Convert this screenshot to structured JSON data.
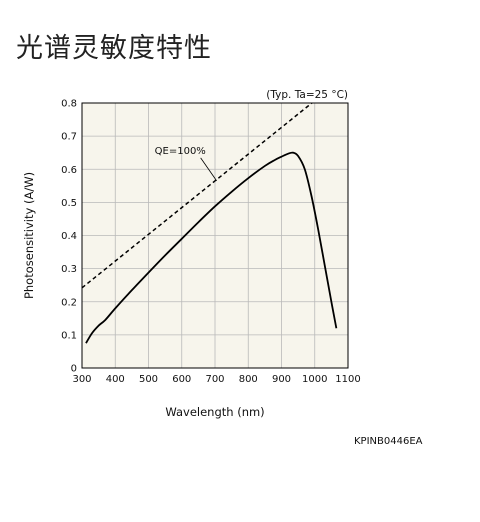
{
  "page": {
    "title": "光谱灵敏度特性",
    "figure_code": "KPINB0446EA"
  },
  "chart_data": {
    "type": "line",
    "title": "",
    "xlabel": "Wavelength (nm)",
    "ylabel": "Photosensitivity (A/W)",
    "condition": "(Typ. Ta=25 °C)",
    "xlim": [
      300,
      1100
    ],
    "ylim": [
      0,
      0.8
    ],
    "x_ticks": [
      300,
      400,
      500,
      600,
      700,
      800,
      900,
      1000,
      1100
    ],
    "y_ticks": [
      0,
      0.1,
      0.2,
      0.3,
      0.4,
      0.5,
      0.6,
      0.7,
      0.8
    ],
    "x_tick_labels": [
      "300",
      "400",
      "500",
      "600",
      "700",
      "800",
      "900",
      "1000",
      "1100"
    ],
    "y_tick_labels": [
      "0",
      "0.1",
      "0.2",
      "0.3",
      "0.4",
      "0.5",
      "0.6",
      "0.7",
      "0.8"
    ],
    "grid": true,
    "background": "#f7f5ec",
    "series": [
      {
        "style": "solid",
        "color": "#000000",
        "x": [
          312,
          330,
          350,
          370,
          400,
          450,
          500,
          550,
          600,
          650,
          700,
          750,
          800,
          850,
          880,
          900,
          920,
          935,
          950,
          970,
          990,
          1010,
          1030,
          1050,
          1065
        ],
        "y": [
          0.075,
          0.105,
          0.128,
          0.145,
          0.18,
          0.235,
          0.288,
          0.34,
          0.39,
          0.44,
          0.488,
          0.532,
          0.573,
          0.61,
          0.628,
          0.638,
          0.647,
          0.65,
          0.64,
          0.6,
          0.52,
          0.42,
          0.31,
          0.2,
          0.12
        ]
      },
      {
        "name": "QE=100%",
        "style": "dashed",
        "color": "#000000",
        "x": [
          300,
          1000
        ],
        "y": [
          0.242,
          0.807
        ]
      }
    ],
    "annotations": [
      {
        "text": "QE=100%",
        "x": 705,
        "y": 0.565
      }
    ]
  }
}
